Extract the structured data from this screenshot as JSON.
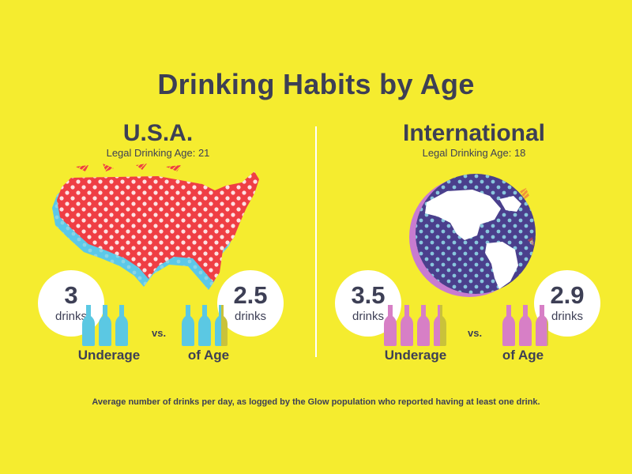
{
  "title": "Drinking Habits by Age",
  "colors": {
    "background": "#f5ec2f",
    "text": "#3d3f55",
    "usa_map": "#ef3e44",
    "usa_shadow": "#5cc8e8",
    "globe_ocean": "#4a3f8c",
    "globe_shadow": "#c87bd0",
    "usa_bottle": "#5bc8e3",
    "intl_bottle": "#d77fc6"
  },
  "usa": {
    "title": "U.S.A.",
    "subtitle": "Legal Drinking Age: 21",
    "map_icon": "usa-map-illustration",
    "underage": {
      "value": "3",
      "unit": "drinks",
      "label": "Underage",
      "bottles": 3
    },
    "vs": "vs.",
    "of_age": {
      "value": "2.5",
      "unit": "drinks",
      "label": "of Age",
      "bottles": 2.5
    }
  },
  "international": {
    "title": "International",
    "subtitle": "Legal Drinking Age: 18",
    "map_icon": "globe-illustration",
    "underage": {
      "value": "3.5",
      "unit": "drinks",
      "label": "Underage",
      "bottles": 3.5
    },
    "vs": "vs.",
    "of_age": {
      "value": "2.9",
      "unit": "drinks",
      "label": "of Age",
      "bottles": 2.9
    }
  },
  "footnote": "Average number of drinks per day, as logged by the Glow population who reported having at least one drink."
}
